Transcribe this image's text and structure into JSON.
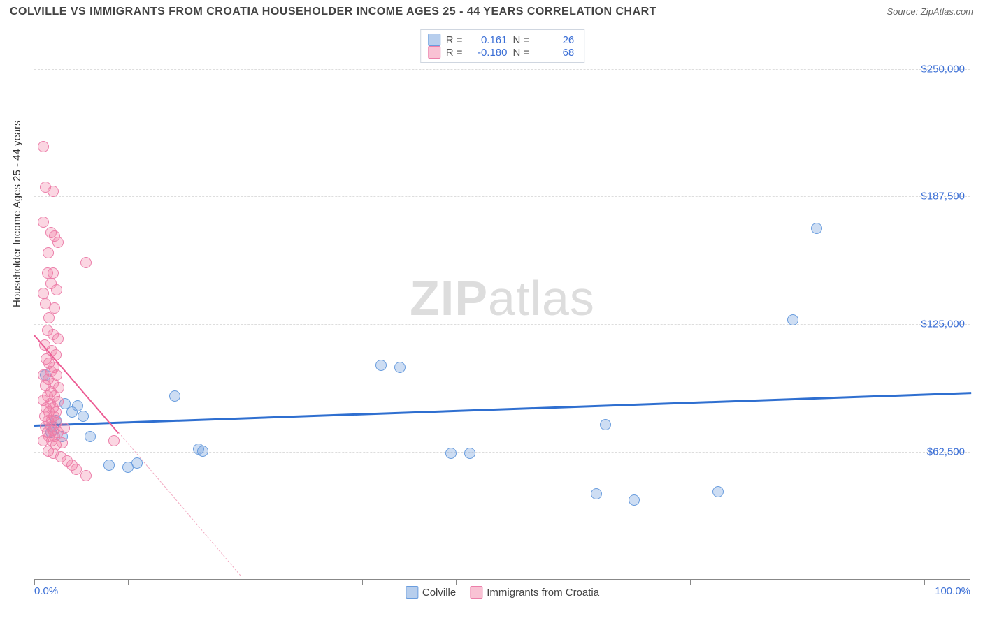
{
  "title": "COLVILLE VS IMMIGRANTS FROM CROATIA HOUSEHOLDER INCOME AGES 25 - 44 YEARS CORRELATION CHART",
  "source": "Source: ZipAtlas.com",
  "yaxis_title": "Householder Income Ages 25 - 44 years",
  "watermark_bold": "ZIP",
  "watermark_rest": "atlas",
  "chart": {
    "type": "scatter",
    "xlim": [
      0,
      100
    ],
    "ylim": [
      0,
      270000
    ],
    "x_min_label": "0.0%",
    "x_max_label": "100.0%",
    "x_ticks": [
      0,
      10,
      20,
      35,
      45,
      55,
      70,
      80,
      95
    ],
    "y_gridlines": [
      {
        "v": 62500,
        "label": "$62,500"
      },
      {
        "v": 125000,
        "label": "$125,000"
      },
      {
        "v": 187500,
        "label": "$187,500"
      },
      {
        "v": 250000,
        "label": "$250,000"
      }
    ],
    "background_color": "#ffffff",
    "grid_color": "#dddddd",
    "axis_color": "#888888",
    "label_color": "#3b6fd6",
    "marker_radius": 8,
    "series": [
      {
        "name": "Colville",
        "color_fill": "rgba(112,158,220,0.35)",
        "color_stroke": "#6a9dde",
        "class": "blue",
        "R": "0.161",
        "N": "26",
        "trend": {
          "x1": 0,
          "y1": 76000,
          "x2": 100,
          "y2": 92000,
          "style": "blue"
        },
        "points": [
          {
            "x": 1.2,
            "y": 100000
          },
          {
            "x": 1.8,
            "y": 72000
          },
          {
            "x": 2.0,
            "y": 75000
          },
          {
            "x": 2.3,
            "y": 78000
          },
          {
            "x": 3.0,
            "y": 70000
          },
          {
            "x": 3.3,
            "y": 86000
          },
          {
            "x": 4.0,
            "y": 82000
          },
          {
            "x": 4.6,
            "y": 85000
          },
          {
            "x": 5.2,
            "y": 80000
          },
          {
            "x": 6.0,
            "y": 70000
          },
          {
            "x": 8.0,
            "y": 56000
          },
          {
            "x": 10.0,
            "y": 55000
          },
          {
            "x": 11.0,
            "y": 57000
          },
          {
            "x": 15.0,
            "y": 90000
          },
          {
            "x": 17.5,
            "y": 64000
          },
          {
            "x": 18.0,
            "y": 63000
          },
          {
            "x": 37.0,
            "y": 105000
          },
          {
            "x": 39.0,
            "y": 104000
          },
          {
            "x": 44.5,
            "y": 62000
          },
          {
            "x": 46.5,
            "y": 62000
          },
          {
            "x": 61.0,
            "y": 76000
          },
          {
            "x": 60.0,
            "y": 42000
          },
          {
            "x": 64.0,
            "y": 39000
          },
          {
            "x": 73.0,
            "y": 43000
          },
          {
            "x": 81.0,
            "y": 127000
          },
          {
            "x": 83.5,
            "y": 172000
          }
        ]
      },
      {
        "name": "Immigrants from Croatia",
        "color_fill": "rgba(241,120,160,0.30)",
        "color_stroke": "#ec7faa",
        "class": "pink",
        "R": "-0.180",
        "N": "68",
        "trend_solid": {
          "x1": 0,
          "y1": 120000,
          "x2": 9,
          "y2": 72000,
          "style": "pink-solid"
        },
        "trend_dash": {
          "x1": 9,
          "y1": 72000,
          "x2": 22,
          "y2": 2000,
          "style": "pink-dash"
        },
        "points": [
          {
            "x": 1.0,
            "y": 212000
          },
          {
            "x": 1.2,
            "y": 192000
          },
          {
            "x": 2.0,
            "y": 190000
          },
          {
            "x": 1.0,
            "y": 175000
          },
          {
            "x": 1.8,
            "y": 170000
          },
          {
            "x": 2.2,
            "y": 168000
          },
          {
            "x": 1.5,
            "y": 160000
          },
          {
            "x": 2.5,
            "y": 165000
          },
          {
            "x": 5.5,
            "y": 155000
          },
          {
            "x": 1.4,
            "y": 150000
          },
          {
            "x": 2.0,
            "y": 150000
          },
          {
            "x": 1.8,
            "y": 145000
          },
          {
            "x": 1.0,
            "y": 140000
          },
          {
            "x": 2.4,
            "y": 142000
          },
          {
            "x": 1.2,
            "y": 135000
          },
          {
            "x": 2.2,
            "y": 133000
          },
          {
            "x": 1.6,
            "y": 128000
          },
          {
            "x": 1.4,
            "y": 122000
          },
          {
            "x": 2.0,
            "y": 120000
          },
          {
            "x": 2.5,
            "y": 118000
          },
          {
            "x": 1.1,
            "y": 115000
          },
          {
            "x": 1.9,
            "y": 112000
          },
          {
            "x": 2.3,
            "y": 110000
          },
          {
            "x": 1.3,
            "y": 108000
          },
          {
            "x": 1.6,
            "y": 106000
          },
          {
            "x": 2.1,
            "y": 104000
          },
          {
            "x": 1.8,
            "y": 102000
          },
          {
            "x": 1.0,
            "y": 100000
          },
          {
            "x": 2.4,
            "y": 100000
          },
          {
            "x": 1.5,
            "y": 98000
          },
          {
            "x": 2.0,
            "y": 96000
          },
          {
            "x": 1.2,
            "y": 95000
          },
          {
            "x": 2.6,
            "y": 94000
          },
          {
            "x": 1.8,
            "y": 92000
          },
          {
            "x": 1.4,
            "y": 90000
          },
          {
            "x": 2.2,
            "y": 90000
          },
          {
            "x": 1.0,
            "y": 88000
          },
          {
            "x": 2.5,
            "y": 87000
          },
          {
            "x": 1.7,
            "y": 86000
          },
          {
            "x": 1.3,
            "y": 84000
          },
          {
            "x": 2.0,
            "y": 84000
          },
          {
            "x": 1.6,
            "y": 82000
          },
          {
            "x": 2.3,
            "y": 82000
          },
          {
            "x": 1.1,
            "y": 80000
          },
          {
            "x": 2.1,
            "y": 80000
          },
          {
            "x": 1.5,
            "y": 78000
          },
          {
            "x": 1.9,
            "y": 78000
          },
          {
            "x": 2.4,
            "y": 77000
          },
          {
            "x": 1.2,
            "y": 75000
          },
          {
            "x": 1.8,
            "y": 75000
          },
          {
            "x": 2.0,
            "y": 73000
          },
          {
            "x": 1.4,
            "y": 72000
          },
          {
            "x": 2.5,
            "y": 72000
          },
          {
            "x": 1.6,
            "y": 70000
          },
          {
            "x": 2.2,
            "y": 70000
          },
          {
            "x": 1.0,
            "y": 68000
          },
          {
            "x": 1.9,
            "y": 68000
          },
          {
            "x": 2.3,
            "y": 66000
          },
          {
            "x": 3.0,
            "y": 67000
          },
          {
            "x": 4.5,
            "y": 54000
          },
          {
            "x": 5.5,
            "y": 51000
          },
          {
            "x": 2.8,
            "y": 60000
          },
          {
            "x": 3.5,
            "y": 58000
          },
          {
            "x": 1.5,
            "y": 63000
          },
          {
            "x": 2.0,
            "y": 62000
          },
          {
            "x": 4.0,
            "y": 56000
          },
          {
            "x": 8.5,
            "y": 68000
          },
          {
            "x": 3.2,
            "y": 74000
          }
        ]
      }
    ],
    "stats_labels": {
      "R": "R =",
      "N": "N ="
    },
    "legend_items": [
      {
        "class": "blue",
        "label": "Colville"
      },
      {
        "class": "pink",
        "label": "Immigrants from Croatia"
      }
    ]
  }
}
